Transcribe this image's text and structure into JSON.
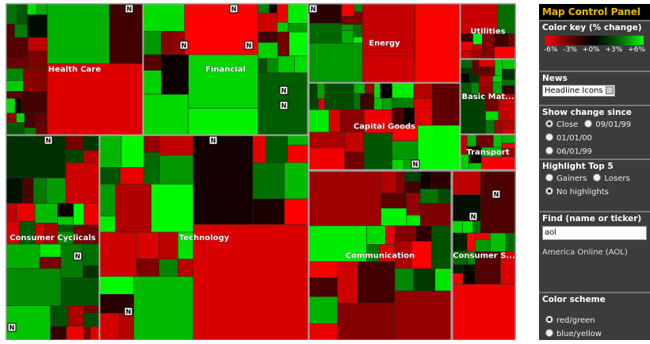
{
  "treemap": {
    "news_icon": "N",
    "sectors": [
      {
        "label": "Health Care"
      },
      {
        "label": "Financial"
      },
      {
        "label": "Energy"
      },
      {
        "label": "Utilities"
      },
      {
        "label": "Basic Mat..."
      },
      {
        "label": "Capital Goods"
      },
      {
        "label": "Transport"
      },
      {
        "label": "Consumer Cyclicals"
      },
      {
        "label": "Technology"
      },
      {
        "label": "Communication"
      },
      {
        "label": "Consumer S..."
      }
    ]
  },
  "panel": {
    "title": "Map Control Panel",
    "color_key": {
      "heading": "Color key (% change)",
      "labels": [
        "-6%",
        "-3%",
        "+0%",
        "+3%",
        "+6%"
      ]
    },
    "news": {
      "heading": "News",
      "selected": "Headline Icons"
    },
    "show_change": {
      "heading": "Show change since",
      "options": [
        "Close",
        "09/01/99",
        "01/01/00",
        "06/01/99"
      ]
    },
    "highlight": {
      "heading": "Highlight Top 5",
      "options": [
        "Gainers",
        "Losers",
        "No highlights"
      ]
    },
    "find": {
      "heading": "Find (name or ticker)",
      "input": "aol",
      "result": "America Online (AOL)"
    },
    "color_scheme": {
      "heading": "Color scheme",
      "options": [
        "red/green",
        "blue/yellow"
      ]
    }
  }
}
